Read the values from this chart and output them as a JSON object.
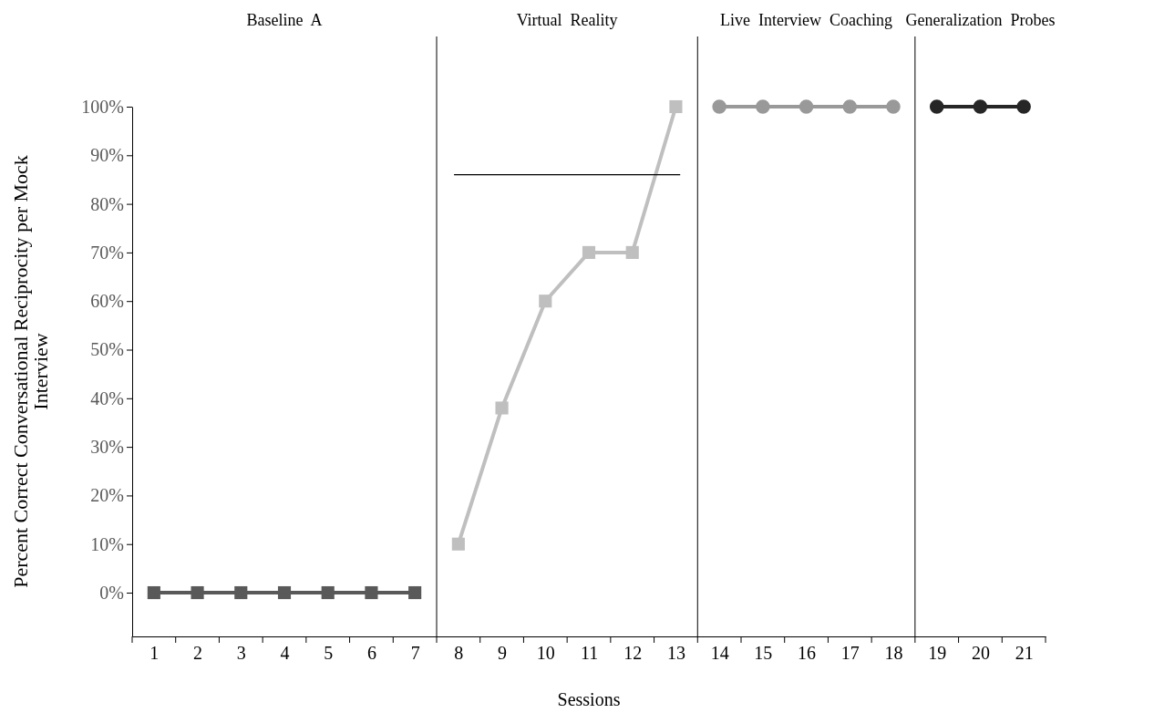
{
  "chart_data": {
    "type": "line",
    "xlabel": "Sessions",
    "ylabel": "Percent Correct Conversational Reciprocity per Mock Interview",
    "xlim": [
      0.5,
      21.5
    ],
    "xticks": [
      1,
      2,
      3,
      4,
      5,
      6,
      7,
      8,
      9,
      10,
      11,
      12,
      13,
      14,
      15,
      16,
      17,
      18,
      19,
      20,
      21
    ],
    "ylim": [
      -9,
      100
    ],
    "yticks": [
      {
        "value": 0,
        "label": "0%"
      },
      {
        "value": 10,
        "label": "10%"
      },
      {
        "value": 20,
        "label": "20%"
      },
      {
        "value": 30,
        "label": "30%"
      },
      {
        "value": 40,
        "label": "40%"
      },
      {
        "value": 50,
        "label": "50%"
      },
      {
        "value": 60,
        "label": "60%"
      },
      {
        "value": 70,
        "label": "70%"
      },
      {
        "value": 80,
        "label": "80%"
      },
      {
        "value": 90,
        "label": "90%"
      },
      {
        "value": 100,
        "label": "100%"
      }
    ],
    "grid": false,
    "series": [
      {
        "color": "#595959",
        "marker": "square",
        "x": [
          1,
          2,
          3,
          4,
          5,
          6,
          7
        ],
        "values": [
          0,
          0,
          0,
          0,
          0,
          0,
          0
        ]
      },
      {
        "color": "#bfbfbf",
        "marker": "square",
        "x": [
          8,
          9,
          10,
          11,
          12,
          13
        ],
        "values": [
          10,
          38,
          60,
          70,
          70,
          100
        ]
      },
      {
        "color": "#999999",
        "marker": "circle",
        "x": [
          14,
          15,
          16,
          17,
          18
        ],
        "values": [
          100,
          100,
          100,
          100,
          100
        ]
      },
      {
        "color": "#262626",
        "marker": "circle",
        "x": [
          19,
          20,
          21
        ],
        "values": [
          100,
          100,
          100
        ]
      },
      {
        "color": "#000000",
        "marker": "none",
        "x": [
          7.9,
          13.1
        ],
        "values": [
          86,
          86
        ]
      }
    ],
    "ref_lines": [
      {
        "axis": "x",
        "value": 7.5,
        "color": "#000000"
      },
      {
        "axis": "x",
        "value": 13.5,
        "color": "#000000"
      },
      {
        "axis": "x",
        "value": 18.5,
        "color": "#000000"
      }
    ],
    "annotations": [
      "Baseline  A",
      "Virtual  Reality",
      "Live  Interview  Coaching",
      "Generalization  Probes"
    ]
  }
}
